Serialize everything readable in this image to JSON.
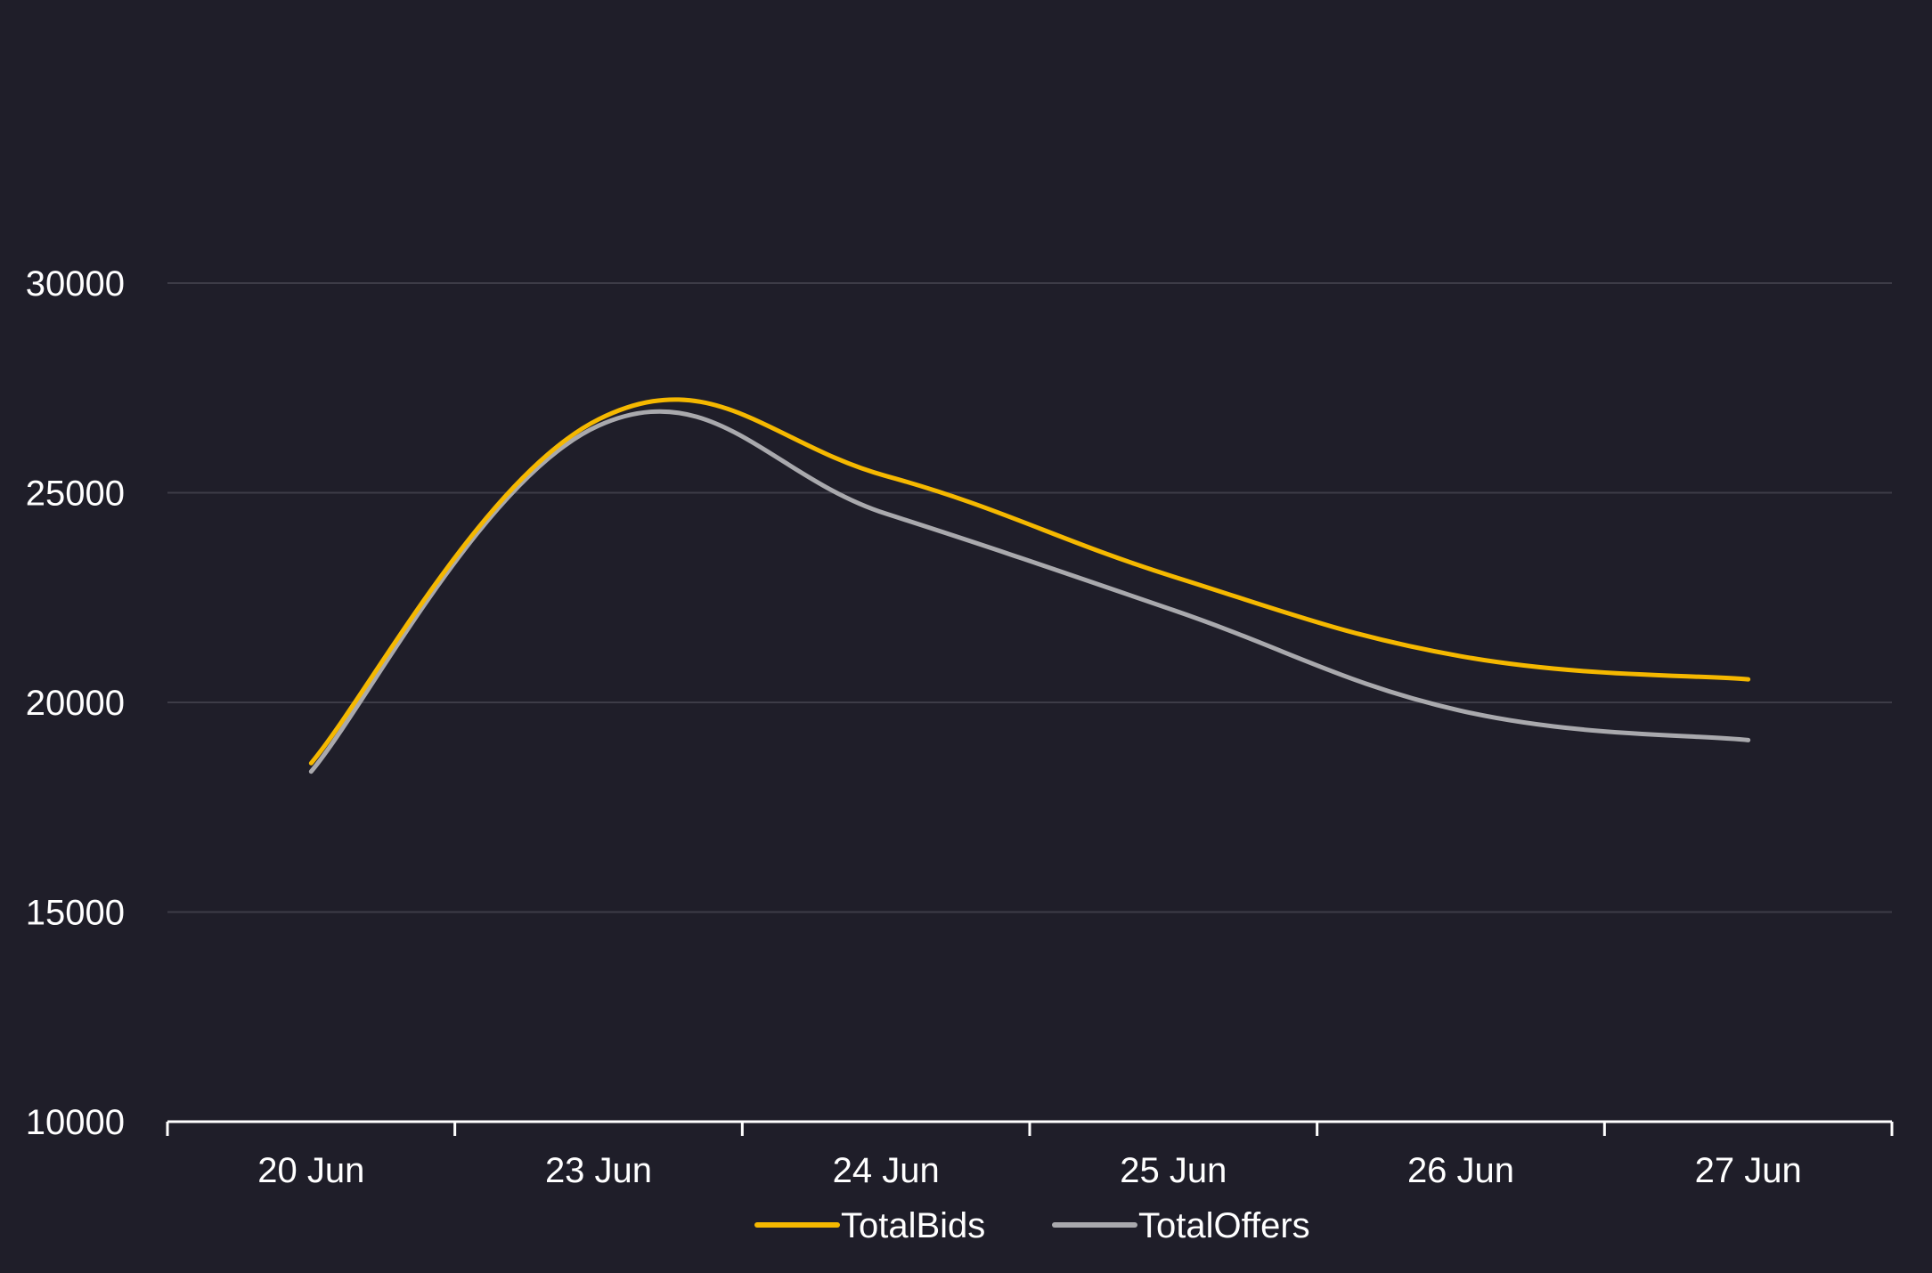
{
  "chart_data": {
    "type": "line",
    "categories": [
      "20 Jun",
      "23 Jun",
      "24 Jun",
      "25 Jun",
      "26 Jun",
      "27 Jun"
    ],
    "series": [
      {
        "name": "TotalBids",
        "color": "#f5b800",
        "values": [
          18550,
          26750,
          25400,
          23000,
          21100,
          20550
        ]
      },
      {
        "name": "TotalOffers",
        "color": "#a9a9ad",
        "values": [
          18350,
          26600,
          24500,
          22200,
          19800,
          19100
        ]
      }
    ],
    "ylim": [
      10000,
      30000
    ],
    "yticks": [
      10000,
      15000,
      20000,
      25000,
      30000
    ],
    "yticklabels": [
      "10000",
      "15000",
      "20000",
      "25000",
      "30000"
    ],
    "grid": true,
    "legend_position": "bottom-center",
    "colors": {
      "background": "#1f1e29",
      "grid": "#3d3c47",
      "axis": "#ffffff",
      "text": "#ffffff"
    }
  }
}
